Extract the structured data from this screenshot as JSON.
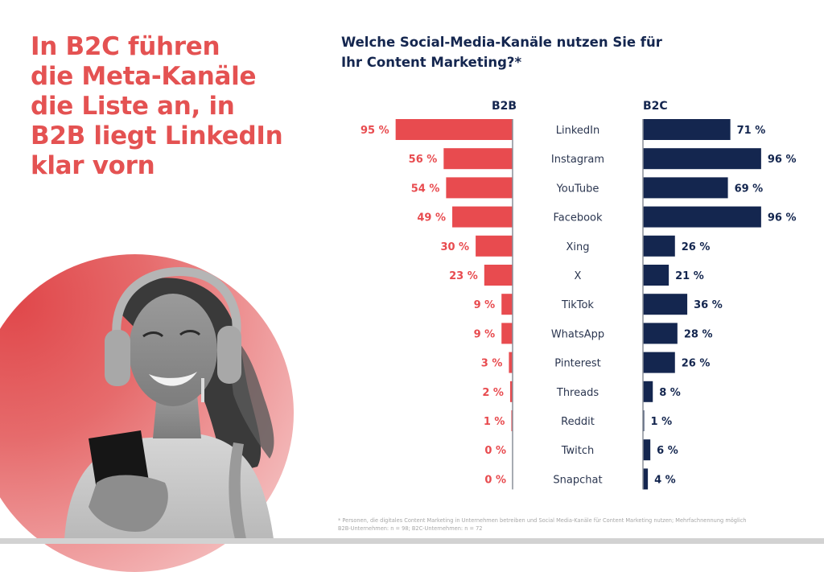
{
  "headline": {
    "lines": [
      "In B2C führen",
      "die Meta-Kanäle",
      "die Liste an, in",
      "B2B liegt LinkedIn",
      "klar vorn"
    ]
  },
  "image": {
    "description": "Smiling woman with headphones holding a smartphone, in front of a red gradient circle"
  },
  "colors": {
    "b2b": "#e84b4f",
    "b2c": "#14264f",
    "headline": "#e45252",
    "axis": "#8a8f99"
  },
  "chart_data": {
    "type": "bar",
    "orientation": "horizontal-butterfly",
    "title_lines": [
      "Welche Social-Media-Kanäle nutzen Sie für",
      "Ihr Content Marketing?*"
    ],
    "categories": [
      "LinkedIn",
      "Instagram",
      "YouTube",
      "Facebook",
      "Xing",
      "X",
      "TikTok",
      "WhatsApp",
      "Pinterest",
      "Threads",
      "Reddit",
      "Twitch",
      "Snapchat"
    ],
    "series": [
      {
        "name": "B2B",
        "values": [
          95,
          56,
          54,
          49,
          30,
          23,
          9,
          9,
          3,
          2,
          1,
          0,
          0
        ]
      },
      {
        "name": "B2C",
        "values": [
          71,
          96,
          69,
          96,
          26,
          21,
          36,
          28,
          26,
          8,
          1,
          6,
          4
        ]
      }
    ],
    "value_suffix": " %",
    "xlim": [
      0,
      100
    ],
    "grid": false,
    "legend": "column headers above bars"
  },
  "footnote": {
    "lines": [
      "* Personen, die digitales Content Marketing in Unternehmen betreiben und Social Media-Kanäle für Content Marketing nutzen; Mehrfachnennung möglich",
      "B2B-Unternehmen: n = 98; B2C-Unternehmen: n = 72"
    ]
  }
}
